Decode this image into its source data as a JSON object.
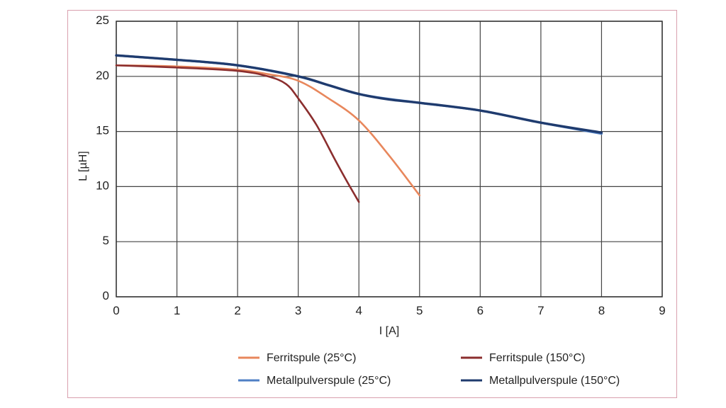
{
  "chart_data": {
    "type": "line",
    "title": "",
    "xlabel": "I [A]",
    "ylabel": "L [µH]",
    "xlim": [
      0,
      9
    ],
    "ylim": [
      0,
      25
    ],
    "xticks": [
      "0",
      "1",
      "2",
      "3",
      "4",
      "5",
      "6",
      "7",
      "8",
      "9"
    ],
    "yticks": [
      "0",
      "5",
      "10",
      "15",
      "20",
      "25"
    ],
    "grid": true,
    "legend_position": "bottom",
    "series": [
      {
        "name": "Ferritspule (25°C)",
        "color": "#e8875c",
        "x": [
          0,
          1,
          2,
          2.5,
          3,
          3.5,
          4,
          4.5,
          5
        ],
        "y": [
          21.0,
          20.9,
          20.6,
          20.2,
          19.6,
          18.0,
          16.0,
          12.8,
          9.2
        ]
      },
      {
        "name": "Ferritspule (150°C)",
        "color": "#8b2e2e",
        "x": [
          0,
          1,
          2,
          2.5,
          2.8,
          3,
          3.3,
          3.6,
          3.8,
          4
        ],
        "y": [
          21.0,
          20.8,
          20.5,
          20.0,
          19.3,
          18.0,
          15.6,
          12.5,
          10.5,
          8.6
        ]
      },
      {
        "name": "Metallpulverspule (25°C)",
        "color": "#4f7fc4",
        "x": [
          0,
          1,
          2,
          3,
          4,
          5,
          6,
          7,
          8
        ],
        "y": [
          21.9,
          21.5,
          21.0,
          20.0,
          18.4,
          17.6,
          16.9,
          15.8,
          14.8
        ]
      },
      {
        "name": "Metallpulverspule (150°C)",
        "color": "#1f3b6e",
        "x": [
          0,
          1,
          2,
          3,
          3.5,
          4,
          4.5,
          5,
          6,
          7,
          8
        ],
        "y": [
          21.9,
          21.5,
          21.0,
          20.0,
          19.2,
          18.4,
          17.9,
          17.6,
          16.9,
          15.8,
          14.9
        ]
      }
    ]
  }
}
